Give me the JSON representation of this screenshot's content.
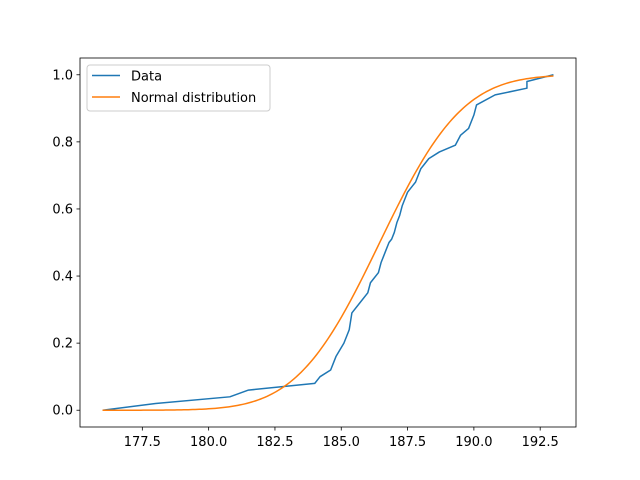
{
  "chart_data": {
    "type": "line",
    "title": "",
    "xlabel": "",
    "ylabel": "",
    "xlim": [
      175.15,
      193.85
    ],
    "ylim": [
      -0.05,
      1.05
    ],
    "xticks": [
      177.5,
      180.0,
      182.5,
      185.0,
      187.5,
      190.0,
      192.5
    ],
    "xtick_labels": [
      "177.5",
      "180.0",
      "182.5",
      "185.0",
      "187.5",
      "190.0",
      "192.5"
    ],
    "yticks": [
      0.0,
      0.2,
      0.4,
      0.6,
      0.8,
      1.0
    ],
    "ytick_labels": [
      "0.0",
      "0.2",
      "0.4",
      "0.6",
      "0.8",
      "1.0"
    ],
    "grid": false,
    "legend_position": "top-left",
    "series": [
      {
        "name": "Data",
        "color": "#1f77b4",
        "x": [
          176.0,
          178.0,
          180.8,
          181.5,
          184.0,
          184.2,
          184.6,
          184.8,
          185.1,
          185.3,
          185.4,
          185.7,
          186.0,
          186.1,
          186.2,
          186.4,
          186.5,
          186.6,
          186.7,
          186.8,
          186.9,
          187.0,
          187.1,
          187.2,
          187.3,
          187.4,
          187.5,
          187.7,
          187.8,
          187.9,
          188.0,
          188.1,
          188.3,
          188.7,
          189.3,
          189.5,
          189.8,
          190.0,
          190.1,
          190.8,
          192.0,
          192.0,
          193.0
        ],
        "y": [
          0.0,
          0.02,
          0.04,
          0.06,
          0.08,
          0.1,
          0.12,
          0.16,
          0.2,
          0.24,
          0.29,
          0.32,
          0.35,
          0.38,
          0.39,
          0.41,
          0.44,
          0.46,
          0.48,
          0.5,
          0.51,
          0.53,
          0.56,
          0.58,
          0.61,
          0.63,
          0.65,
          0.67,
          0.68,
          0.7,
          0.72,
          0.73,
          0.75,
          0.77,
          0.79,
          0.82,
          0.84,
          0.88,
          0.91,
          0.94,
          0.96,
          0.98,
          1.0
        ]
      },
      {
        "name": "Normal distribution",
        "color": "#ff7f0e",
        "distribution": {
          "mean": 186.45,
          "std": 2.45
        },
        "x_range": [
          176.0,
          193.0
        ]
      }
    ]
  }
}
